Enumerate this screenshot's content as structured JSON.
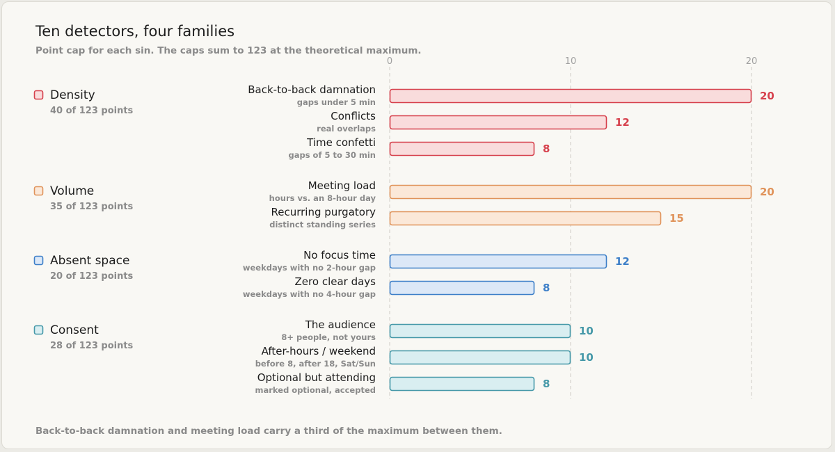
{
  "header": {
    "title": "Ten detectors, four families",
    "subtitle": "Point cap for each sin. The caps sum to 123 at the theoretical maximum."
  },
  "footnote": "Back-to-back damnation and meeting load carry a third of the maximum between them.",
  "colors": {
    "density": {
      "stroke": "#d6404c",
      "fill": "#f9dcdc",
      "text": "#d6404c"
    },
    "volume": {
      "stroke": "#e0935a",
      "fill": "#fbe8d8",
      "text": "#e0935a"
    },
    "absent_space": {
      "stroke": "#3d7fc8",
      "fill": "#dce8f7",
      "text": "#3d7fc8"
    },
    "consent": {
      "stroke": "#4598a8",
      "fill": "#d9eef1",
      "text": "#4598a8"
    }
  },
  "chart_data": {
    "type": "bar",
    "orientation": "horizontal",
    "title": "Ten detectors, four families",
    "subtitle": "Point cap for each sin. The caps sum to 123 at the theoretical maximum.",
    "xlim": [
      0,
      20
    ],
    "xticks": [
      "0",
      "10",
      "20"
    ],
    "grid": true,
    "families": [
      {
        "key": "density",
        "name": "Density",
        "summary": "40 of 123 points",
        "bars": [
          {
            "label": "Back-to-back damnation",
            "sublabel": "gaps under 5 min",
            "value": 20
          },
          {
            "label": "Conflicts",
            "sublabel": "real overlaps",
            "value": 12
          },
          {
            "label": "Time confetti",
            "sublabel": "gaps of 5 to 30 min",
            "value": 8
          }
        ]
      },
      {
        "key": "volume",
        "name": "Volume",
        "summary": "35 of 123 points",
        "bars": [
          {
            "label": "Meeting load",
            "sublabel": "hours vs. an 8-hour day",
            "value": 20
          },
          {
            "label": "Recurring purgatory",
            "sublabel": "distinct standing series",
            "value": 15
          }
        ]
      },
      {
        "key": "absent_space",
        "name": "Absent space",
        "summary": "20 of 123 points",
        "bars": [
          {
            "label": "No focus time",
            "sublabel": "weekdays with no 2-hour gap",
            "value": 12
          },
          {
            "label": "Zero clear days",
            "sublabel": "weekdays with no 4-hour gap",
            "value": 8
          }
        ]
      },
      {
        "key": "consent",
        "name": "Consent",
        "summary": "28 of 123 points",
        "bars": [
          {
            "label": "The audience",
            "sublabel": "8+ people, not yours",
            "value": 10
          },
          {
            "label": "After-hours / weekend",
            "sublabel": "before 8, after 18, Sat/Sun",
            "value": 10
          },
          {
            "label": "Optional but attending",
            "sublabel": "marked optional, accepted",
            "value": 8
          }
        ]
      }
    ]
  }
}
